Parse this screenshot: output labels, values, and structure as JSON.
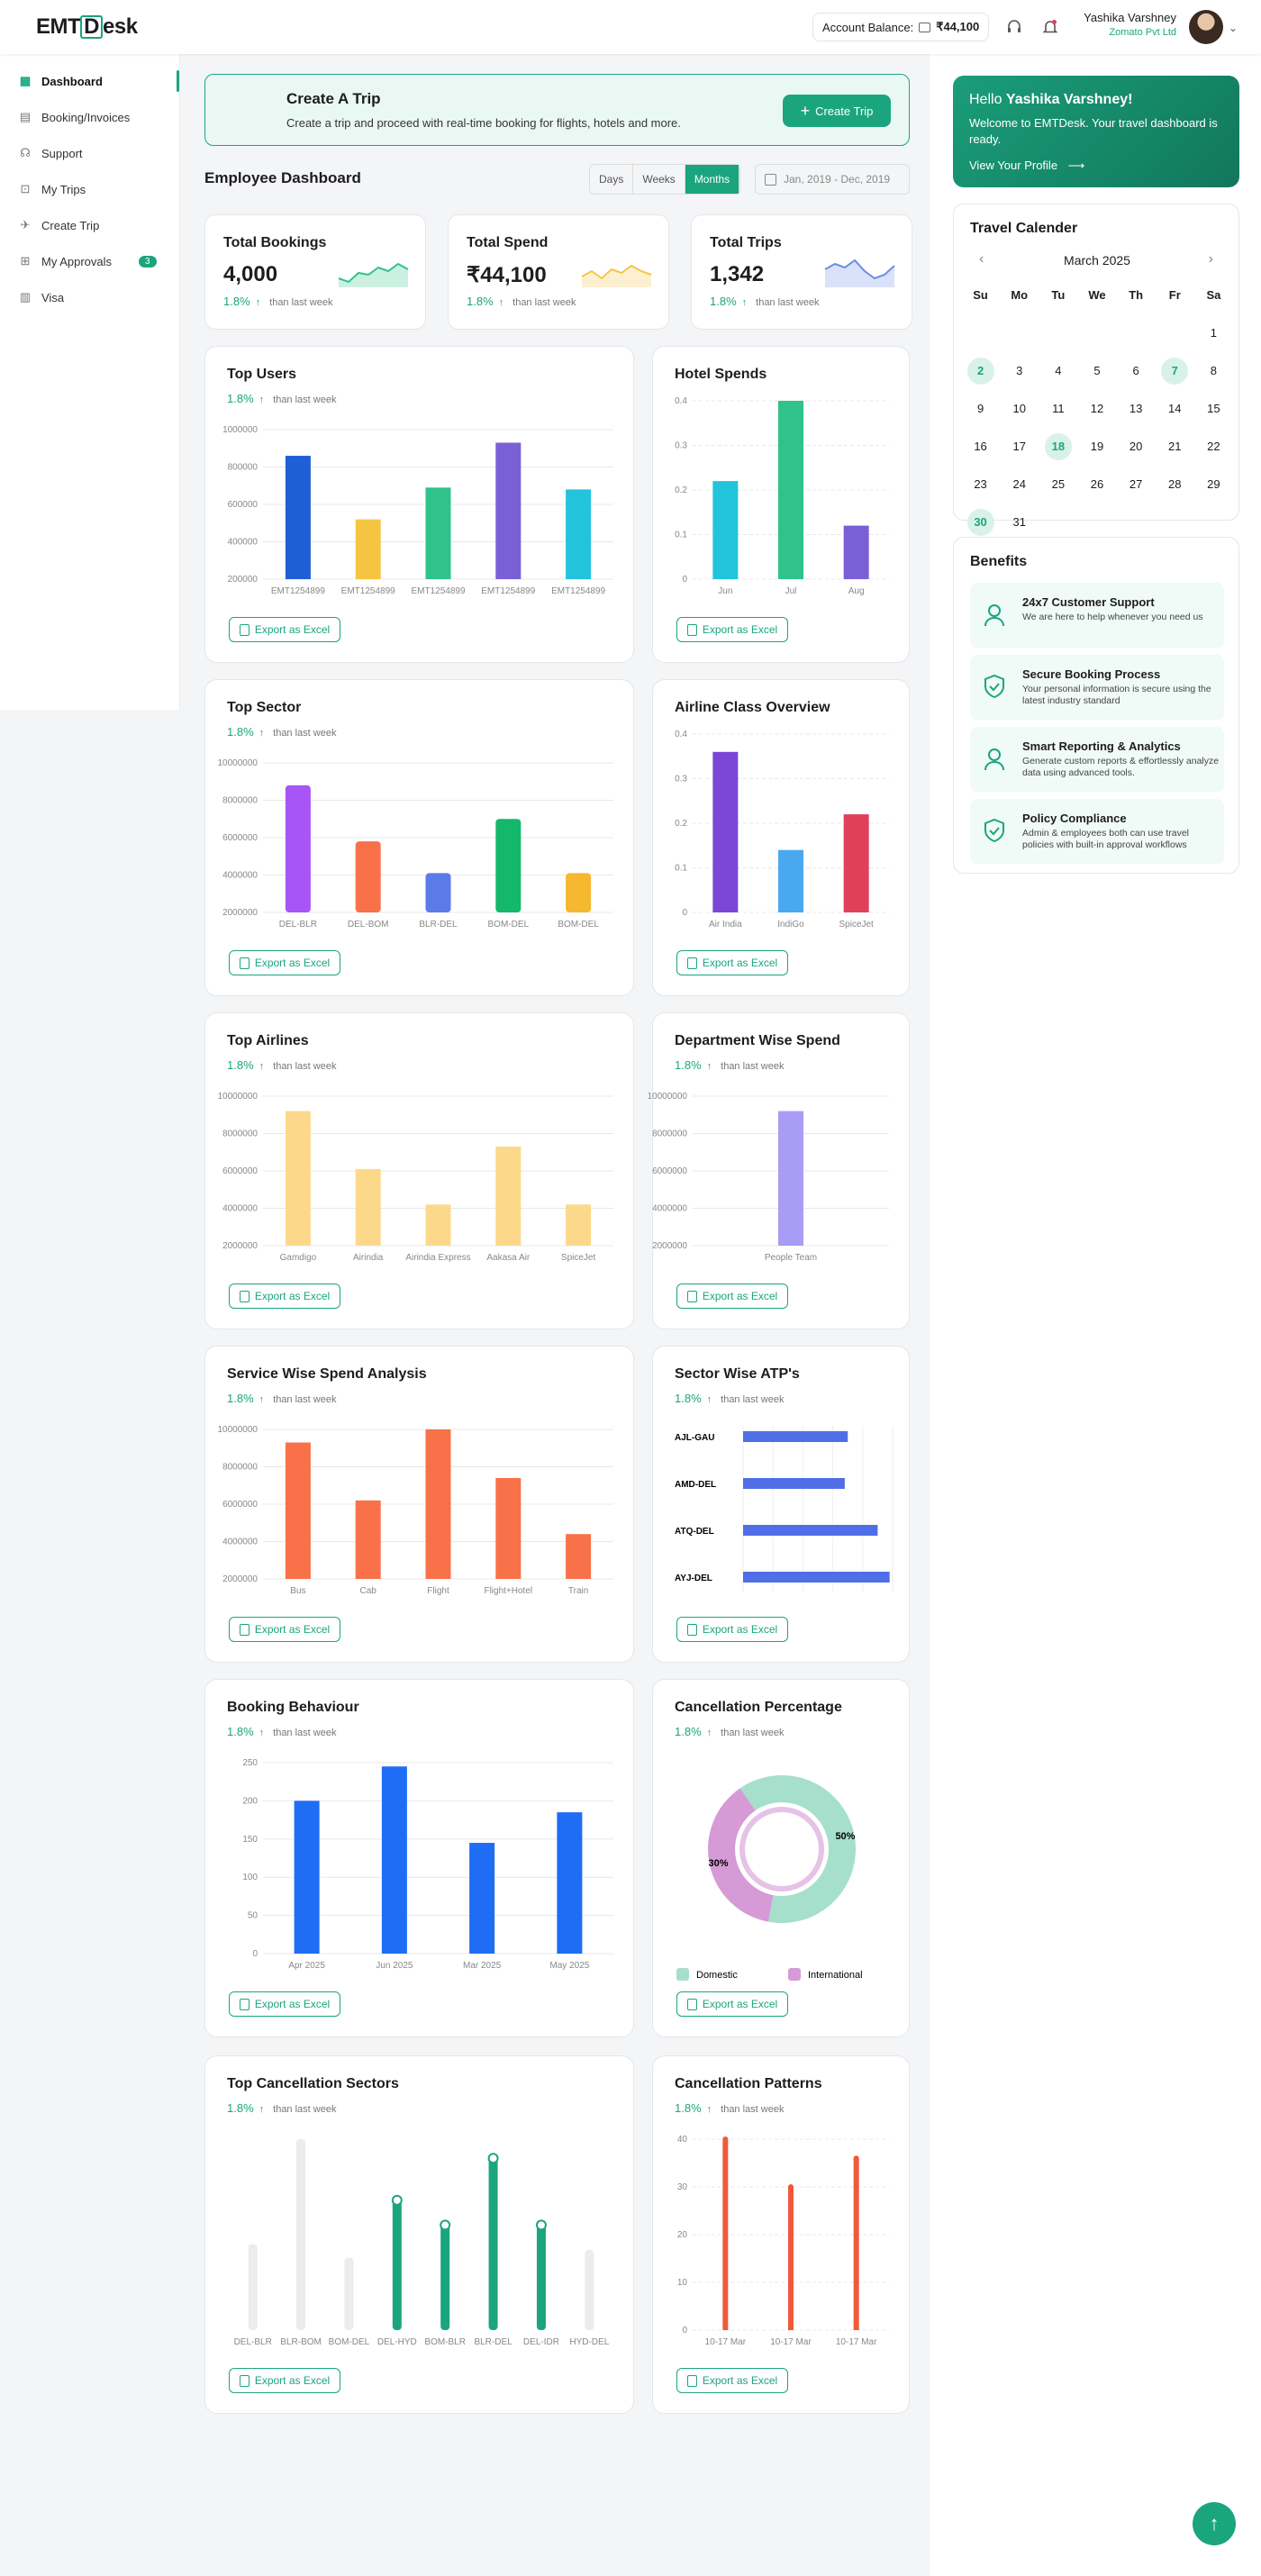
{
  "header": {
    "logo_a": "EMT",
    "logo_b": "D",
    "logo_c": "esk",
    "balance_label": "Account Balance:",
    "balance_value": "₹44,100",
    "user_name": "Yashika Varshney",
    "company": "Zomato Pvt Ltd"
  },
  "sidebar": {
    "items": [
      {
        "label": "Dashboard",
        "icon": "grid-icon"
      },
      {
        "label": "Booking/Invoices",
        "icon": "document-icon"
      },
      {
        "label": "Support",
        "icon": "headset-icon"
      },
      {
        "label": "My Trips",
        "icon": "suitcase-icon"
      },
      {
        "label": "Create Trip",
        "icon": "plane-icon"
      },
      {
        "label": "My Approvals",
        "icon": "approval-icon",
        "badge": "3"
      },
      {
        "label": "Visa",
        "icon": "visa-icon"
      }
    ]
  },
  "create_trip": {
    "title": "Create A Trip",
    "desc": "Create a trip and proceed with real-time booking for flights, hotels and more.",
    "button": "Create Trip"
  },
  "dashboard": {
    "title": "Employee Dashboard",
    "tabs": [
      "Days",
      "Weeks",
      "Months"
    ],
    "active_tab": "Months",
    "date_range": "Jan, 2019 - Dec, 2019"
  },
  "stats": [
    {
      "title": "Total Bookings",
      "value": "4,000",
      "change": "1.8%",
      "note": "than last week",
      "color": "#2fc28b"
    },
    {
      "title": "Total Spend",
      "value": "₹44,100",
      "change": "1.8%",
      "note": "than last week",
      "color": "#f5c542"
    },
    {
      "title": "Total Trips",
      "value": "1,342",
      "change": "1.8%",
      "note": "than last week",
      "color": "#6b8de8"
    }
  ],
  "common": {
    "change": "1.8%",
    "note": "than last week",
    "export": "Export as Excel"
  },
  "cards": {
    "top_users": "Top Users",
    "hotel": "Hotel Spends",
    "sector": "Top Sector",
    "airline_class": "Airline Class Overview",
    "airlines": "Top Airlines",
    "dept": "Department Wise Spend",
    "service": "Service Wise Spend Analysis",
    "atp": "Sector Wise ATP's",
    "behaviour": "Booking Behaviour",
    "cancel_pct": "Cancellation Percentage",
    "cancel_sectors": "Top Cancellation Sectors",
    "cancel_patterns": "Cancellation Patterns"
  },
  "chart_data": [
    {
      "id": "top_users",
      "type": "bar",
      "categories": [
        "EMT1254899",
        "EMT1254899",
        "EMT1254899",
        "EMT1254899",
        "EMT1254899"
      ],
      "values": [
        860000,
        520000,
        690000,
        930000,
        680000
      ],
      "ylim": [
        200000,
        1000000
      ],
      "yticks": [
        "200000",
        "400000",
        "600000",
        "800000",
        "1000000"
      ],
      "colors": [
        "#1f5fd6",
        "#f5c542",
        "#2fc28b",
        "#7b5fd6",
        "#22c4dc"
      ]
    },
    {
      "id": "hotel",
      "type": "bar",
      "categories": [
        "Jun",
        "Jul",
        "Aug"
      ],
      "values": [
        0.22,
        0.41,
        0.12
      ],
      "ylim": [
        0,
        0.4
      ],
      "yticks": [
        "0",
        "0.1",
        "0.2",
        "0.3",
        "0.4"
      ],
      "colors": [
        "#22c4dc",
        "#2fc28b",
        "#7b5fd6"
      ]
    },
    {
      "id": "sector",
      "type": "bar",
      "categories": [
        "DEL-BLR",
        "DEL-BOM",
        "BLR-DEL",
        "BOM-DEL",
        "BOM-DEL"
      ],
      "values": [
        8800000,
        5800000,
        4100000,
        7000000,
        4100000
      ],
      "ylim": [
        2000000,
        10000000
      ],
      "yticks": [
        "2000000",
        "4000000",
        "6000000",
        "8000000",
        "10000000"
      ],
      "colors": [
        "#a855f7",
        "#f87148",
        "#5b7be8",
        "#14b86a",
        "#f5b82e"
      ]
    },
    {
      "id": "airline_class",
      "type": "bar",
      "categories": [
        "Air India",
        "IndiGo",
        "SpiceJet"
      ],
      "values": [
        0.36,
        0.14,
        0.22
      ],
      "ylim": [
        0,
        0.4
      ],
      "yticks": [
        "0",
        "0.1",
        "0.2",
        "0.3",
        "0.4"
      ],
      "colors": [
        "#7b45d6",
        "#4aa8f0",
        "#e0405a"
      ]
    },
    {
      "id": "airlines",
      "type": "bar",
      "categories": [
        "Gamdigo",
        "Airindia",
        "Airindia Express",
        "Aakasa Air",
        "SpiceJet"
      ],
      "values": [
        9200000,
        6100000,
        4200000,
        7300000,
        4200000
      ],
      "ylim": [
        2000000,
        10000000
      ],
      "yticks": [
        "2000000",
        "4000000",
        "6000000",
        "8000000",
        "10000000"
      ],
      "colors": [
        "#fcd98a",
        "#fcd98a",
        "#fcd98a",
        "#fcd98a",
        "#fcd98a"
      ]
    },
    {
      "id": "dept",
      "type": "bar",
      "categories": [
        "People Team"
      ],
      "values": [
        9200000
      ],
      "ylim": [
        2000000,
        10000000
      ],
      "yticks": [
        "2000000",
        "4000000",
        "6000000",
        "8000000",
        "10000000"
      ],
      "colors": [
        "#a89cf5"
      ]
    },
    {
      "id": "service",
      "type": "bar",
      "categories": [
        "Bus",
        "Cab",
        "Flight",
        "Flight+Hotel",
        "Train"
      ],
      "values": [
        9300000,
        6200000,
        10000000,
        7400000,
        4400000
      ],
      "ylim": [
        2000000,
        10000000
      ],
      "yticks": [
        "2000000",
        "4000000",
        "6000000",
        "8000000",
        "10000000"
      ],
      "colors": [
        "#f87148",
        "#f87148",
        "#f87148",
        "#f87148",
        "#f87148"
      ]
    },
    {
      "id": "atp",
      "type": "bar",
      "orientation": "horizontal",
      "categories": [
        "AJL-GAU",
        "AMD-DEL",
        "ATQ-DEL",
        "AYJ-DEL"
      ],
      "values": [
        0.7,
        0.68,
        0.9,
        0.98
      ],
      "xlim": [
        0,
        1
      ],
      "colors": [
        "#4f6ee8"
      ]
    },
    {
      "id": "behaviour",
      "type": "bar",
      "categories": [
        "Apr 2025",
        "Jun 2025",
        "Mar 2025",
        "May 2025"
      ],
      "values": [
        200,
        245,
        145,
        185
      ],
      "ylim": [
        0,
        250
      ],
      "yticks": [
        "0",
        "50",
        "100",
        "150",
        "200",
        "250"
      ],
      "colors": [
        "#1f6cf5"
      ]
    },
    {
      "id": "cancel_pct",
      "type": "pie",
      "labels": [
        "Domestic",
        "International"
      ],
      "values": [
        50,
        30
      ],
      "display": [
        "50%",
        "30%"
      ],
      "colors": [
        "#a6dfcb",
        "#d69ad6"
      ]
    },
    {
      "id": "cancel_sectors",
      "type": "bar",
      "categories": [
        "DEL-BLR",
        "BLR-BOM",
        "BOM-DEL",
        "DEL-HYD",
        "BOM-BLR",
        "BLR-DEL",
        "DEL-IDR",
        "HYD-DEL"
      ],
      "values": [
        45,
        100,
        38,
        68,
        55,
        90,
        55,
        42
      ],
      "active": [
        false,
        false,
        false,
        true,
        true,
        true,
        true,
        false
      ],
      "ylim": [
        0,
        100
      ]
    },
    {
      "id": "cancel_patterns",
      "type": "bar",
      "categories": [
        "10-17 Mar",
        "10-17 Mar",
        "10-17 Mar"
      ],
      "values": [
        40,
        30,
        36
      ],
      "ylim": [
        0,
        40
      ],
      "yticks": [
        "0",
        "10",
        "20",
        "30",
        "40"
      ],
      "colors": [
        "#f05a3a"
      ]
    }
  ],
  "right": {
    "hello": "Hello",
    "name": "Yashika Varshney!",
    "welcome": "Welcome to EMTDesk. Your travel dashboard is ready.",
    "view_profile": "View Your Profile"
  },
  "calendar": {
    "title": "Travel Calender",
    "month": "March 2025",
    "days": [
      "Su",
      "Mo",
      "Tu",
      "We",
      "Th",
      "Fr",
      "Sa"
    ],
    "highlight": [
      2,
      7,
      18,
      30
    ]
  },
  "benefits": {
    "title": "Benefits",
    "items": [
      {
        "title": "24x7 Customer Support",
        "desc": "We are here to help whenever you need us"
      },
      {
        "title": "Secure Booking Process",
        "desc": "Your personal information is secure using the latest industry standard"
      },
      {
        "title": "Smart Reporting & Analytics",
        "desc": "Generate custom reports & effortlessly analyze data using advanced tools."
      },
      {
        "title": "Policy Compliance",
        "desc": "Admin & employees both can use travel policies with built-in approval workflows"
      }
    ]
  }
}
